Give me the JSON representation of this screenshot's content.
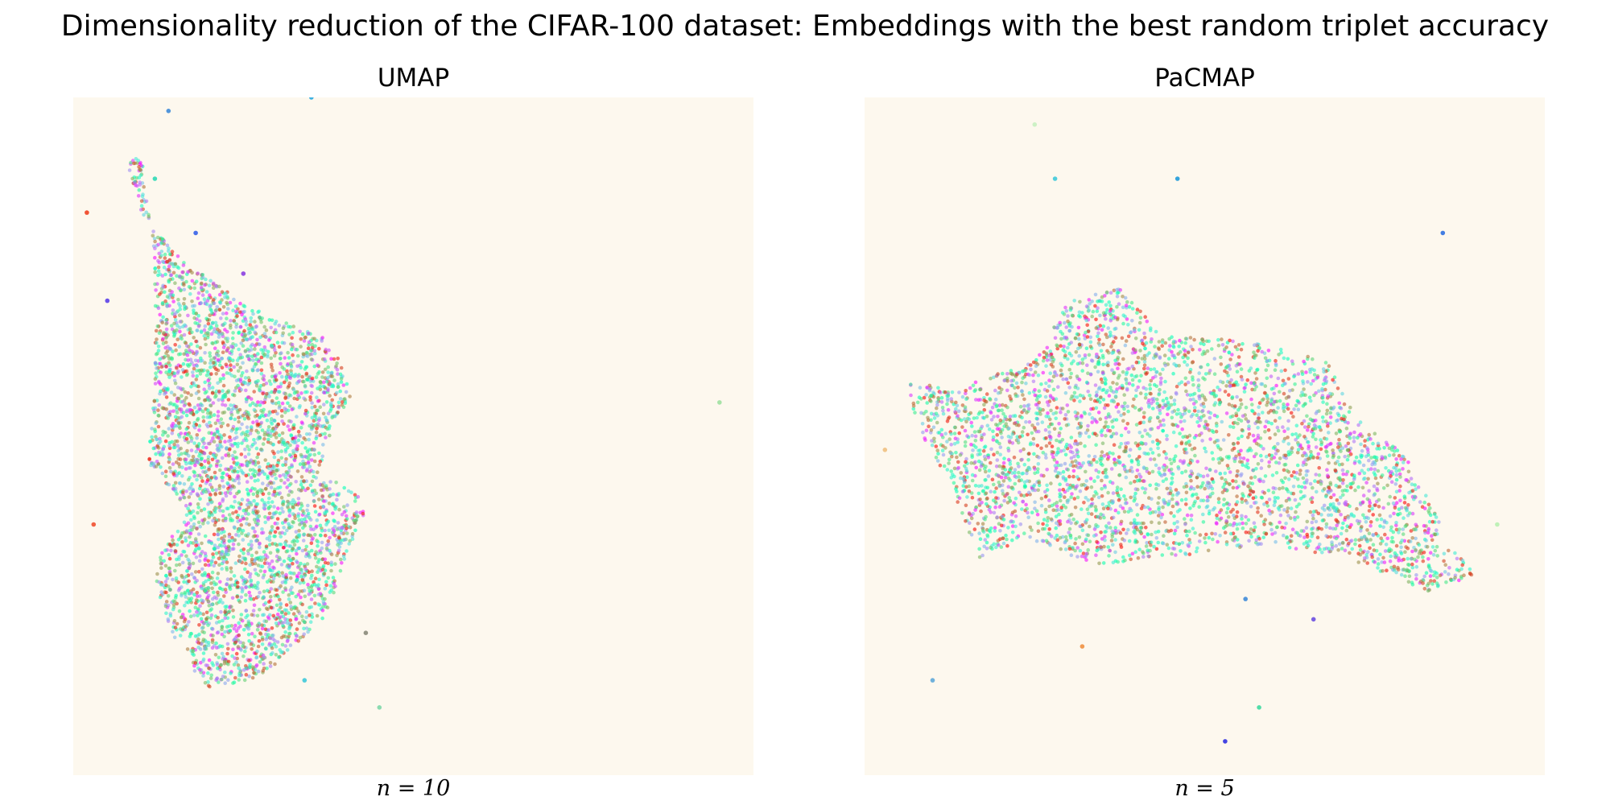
{
  "title": "Dimensionality reduction of the CIFAR-100 dataset: Embeddings with the best random triplet accuracy",
  "chart_data": [
    {
      "type": "scatter",
      "title": "UMAP",
      "xlabel": "n = 10",
      "ylabel": "",
      "grid": false,
      "axes_visible": false,
      "background_color": "#fdf8ee",
      "colormap": "rainbow",
      "point_alpha": 0.6,
      "points_depicted": "approx. 10000 embedded CIFAR-100 samples (dense cloud)",
      "cloud_outline": [
        [
          0.2,
          0.87
        ],
        [
          0.27,
          0.86
        ],
        [
          0.37,
          0.77
        ],
        [
          0.4,
          0.68
        ],
        [
          0.43,
          0.61
        ],
        [
          0.42,
          0.59
        ],
        [
          0.36,
          0.55
        ],
        [
          0.39,
          0.47
        ],
        [
          0.41,
          0.44
        ],
        [
          0.38,
          0.36
        ],
        [
          0.26,
          0.31
        ],
        [
          0.16,
          0.24
        ],
        [
          0.1,
          0.17
        ],
        [
          0.08,
          0.1
        ],
        [
          0.1,
          0.08
        ],
        [
          0.12,
          0.25
        ],
        [
          0.12,
          0.43
        ],
        [
          0.11,
          0.54
        ],
        [
          0.17,
          0.61
        ],
        [
          0.13,
          0.67
        ],
        [
          0.12,
          0.72
        ],
        [
          0.15,
          0.8
        ],
        [
          0.18,
          0.85
        ]
      ],
      "outliers": [
        [
          0.14,
          0.02,
          "#3f8bd8"
        ],
        [
          0.35,
          0.0,
          "#2aa8e0"
        ],
        [
          0.95,
          0.45,
          "#9fe0a0"
        ],
        [
          0.43,
          0.79,
          "#8a8a7a"
        ],
        [
          0.45,
          0.9,
          "#7fd7a8"
        ],
        [
          0.12,
          0.12,
          "#2fd9b5"
        ],
        [
          0.18,
          0.2,
          "#3560e8"
        ],
        [
          0.25,
          0.26,
          "#8b3fe0"
        ],
        [
          0.02,
          0.17,
          "#f04020"
        ],
        [
          0.05,
          0.3,
          "#5b3fe8"
        ],
        [
          0.03,
          0.63,
          "#f05030"
        ],
        [
          0.34,
          0.86,
          "#3fc9d9"
        ]
      ]
    },
    {
      "type": "scatter",
      "title": "PaCMAP",
      "xlabel": "n = 5",
      "ylabel": "",
      "grid": false,
      "axes_visible": false,
      "background_color": "#fdf8ee",
      "colormap": "rainbow",
      "point_alpha": 0.6,
      "points_depicted": "approx. 10000 embedded CIFAR-100 samples (dense cloud)",
      "cloud_outline": [
        [
          0.06,
          0.42
        ],
        [
          0.13,
          0.43
        ],
        [
          0.25,
          0.39
        ],
        [
          0.3,
          0.3
        ],
        [
          0.38,
          0.28
        ],
        [
          0.44,
          0.35
        ],
        [
          0.57,
          0.36
        ],
        [
          0.68,
          0.39
        ],
        [
          0.73,
          0.48
        ],
        [
          0.8,
          0.53
        ],
        [
          0.86,
          0.66
        ],
        [
          0.91,
          0.7
        ],
        [
          0.83,
          0.73
        ],
        [
          0.71,
          0.68
        ],
        [
          0.6,
          0.66
        ],
        [
          0.43,
          0.68
        ],
        [
          0.34,
          0.69
        ],
        [
          0.24,
          0.65
        ],
        [
          0.17,
          0.68
        ],
        [
          0.12,
          0.56
        ],
        [
          0.08,
          0.49
        ]
      ],
      "outliers": [
        [
          0.25,
          0.04,
          "#c8f0c0"
        ],
        [
          0.28,
          0.12,
          "#3fc9d9"
        ],
        [
          0.46,
          0.12,
          "#1f9ad9"
        ],
        [
          0.85,
          0.2,
          "#2f70e0"
        ],
        [
          0.03,
          0.52,
          "#f0c080"
        ],
        [
          0.93,
          0.63,
          "#b8f0b0"
        ],
        [
          0.56,
          0.74,
          "#3f8bd8"
        ],
        [
          0.66,
          0.77,
          "#6b4fe0"
        ],
        [
          0.32,
          0.81,
          "#f09040"
        ],
        [
          0.1,
          0.86,
          "#5fa8d8"
        ],
        [
          0.58,
          0.9,
          "#3fd9a0"
        ],
        [
          0.53,
          0.95,
          "#3030e0"
        ]
      ]
    }
  ]
}
